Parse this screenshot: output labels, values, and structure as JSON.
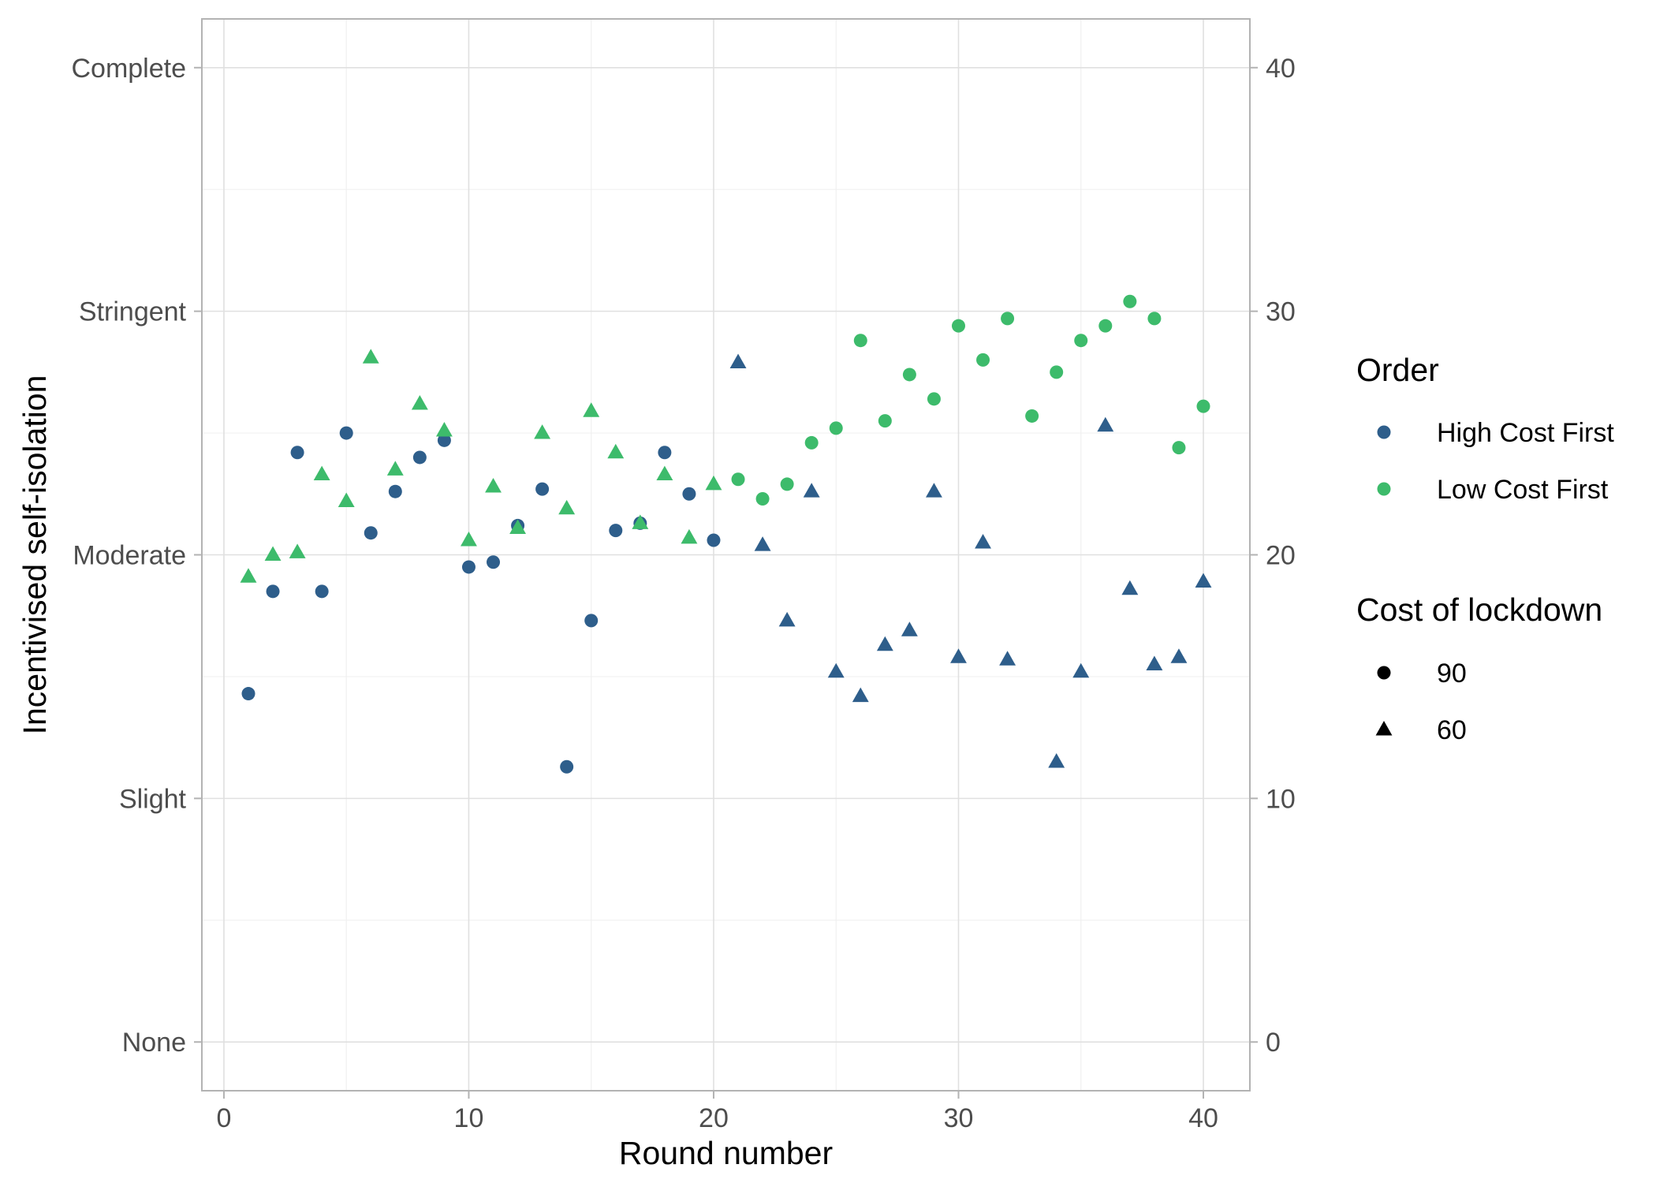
{
  "chart_data": {
    "type": "scatter",
    "xlabel": "Round number",
    "ylabel": "Incentivised self-isolation",
    "xlim": [
      -0.9,
      41.9
    ],
    "ylim": [
      -2,
      42
    ],
    "x_ticks": [
      "0",
      "10",
      "20",
      "30",
      "40"
    ],
    "x_tick_values": [
      0,
      10,
      20,
      30,
      40
    ],
    "y_left_ticks": [
      "None",
      "Slight",
      "Moderate",
      "Stringent",
      "Complete"
    ],
    "y_right_ticks": [
      "0",
      "10",
      "20",
      "30",
      "40"
    ],
    "y_tick_values": [
      0,
      10,
      20,
      30,
      40
    ],
    "grid": true,
    "legend_position": "right",
    "legend": {
      "color_title": "Order",
      "color_items": [
        {
          "label": "High Cost First",
          "color": "#2e5e8b"
        },
        {
          "label": "Low Cost First",
          "color": "#3dbb6b"
        }
      ],
      "shape_title": "Cost of lockdown",
      "shape_items": [
        {
          "label": "90",
          "shape": "circle"
        },
        {
          "label": "60",
          "shape": "triangle"
        }
      ]
    },
    "series": [
      {
        "order": "High Cost First",
        "cost": "90",
        "color": "#2e5e8b",
        "shape": "circle",
        "x": [
          1,
          2,
          3,
          4,
          5,
          6,
          7,
          8,
          9,
          10,
          11,
          12,
          13,
          14,
          15,
          16,
          17,
          18,
          19,
          20
        ],
        "y": [
          14.3,
          18.5,
          24.2,
          18.5,
          25.0,
          20.9,
          22.6,
          24.0,
          24.7,
          19.5,
          19.7,
          21.2,
          22.7,
          11.3,
          17.3,
          21.0,
          21.3,
          24.2,
          22.5,
          20.6
        ]
      },
      {
        "order": "Low Cost First",
        "cost": "60",
        "color": "#3dbb6b",
        "shape": "triangle",
        "x": [
          1,
          2,
          3,
          4,
          5,
          6,
          7,
          8,
          9,
          10,
          11,
          12,
          13,
          14,
          15,
          16,
          17,
          18,
          19,
          20
        ],
        "y": [
          19.1,
          20.0,
          20.1,
          23.3,
          22.2,
          28.1,
          23.5,
          26.2,
          25.1,
          20.6,
          22.8,
          21.1,
          25.0,
          21.9,
          25.9,
          24.2,
          21.3,
          23.3,
          20.7,
          22.9
        ]
      },
      {
        "order": "High Cost First",
        "cost": "60",
        "color": "#2e5e8b",
        "shape": "triangle",
        "x": [
          21,
          22,
          23,
          24,
          25,
          26,
          27,
          28,
          29,
          30,
          31,
          32,
          33,
          34,
          35,
          36,
          37,
          38,
          39,
          40
        ],
        "y": [
          27.9,
          20.4,
          17.3,
          22.6,
          15.2,
          14.2,
          16.3,
          16.9,
          22.6,
          15.8,
          20.5,
          15.7,
          null,
          11.5,
          15.2,
          25.3,
          18.6,
          15.5,
          15.8,
          18.9
        ]
      },
      {
        "order": "Low Cost First",
        "cost": "90",
        "color": "#3dbb6b",
        "shape": "circle",
        "x": [
          21,
          22,
          23,
          24,
          25,
          26,
          27,
          28,
          29,
          30,
          31,
          32,
          33,
          34,
          35,
          36,
          37,
          38,
          39,
          40
        ],
        "y": [
          23.1,
          22.3,
          22.9,
          24.6,
          25.2,
          28.8,
          25.5,
          27.4,
          26.4,
          29.4,
          28.0,
          29.7,
          25.7,
          27.5,
          28.8,
          29.4,
          30.4,
          29.7,
          24.4,
          26.1
        ]
      }
    ]
  }
}
